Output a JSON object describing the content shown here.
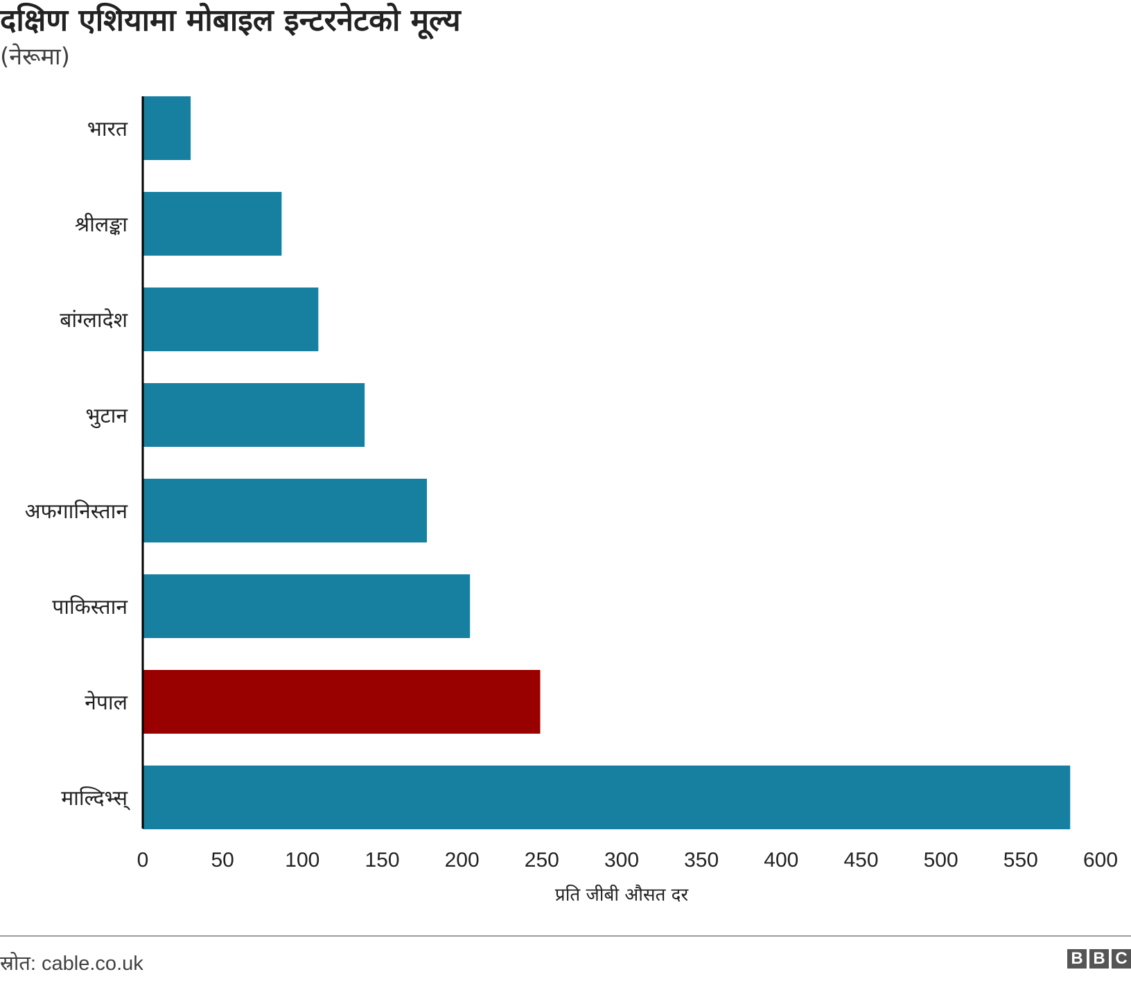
{
  "title": "दक्षिण एशियामा मोबाइल इन्टरनेटको मूल्य",
  "subtitle": "(नेरूमा)",
  "source": "स्रोत: cable.co.uk",
  "logo": [
    "B",
    "B",
    "C"
  ],
  "colors": {
    "bar": "#1780a1",
    "highlight": "#990000",
    "axis": "#000000",
    "text": "#222222"
  },
  "chart_data": {
    "type": "bar",
    "orientation": "horizontal",
    "categories": [
      "भारत",
      "श्रीलङ्का",
      "बांग्लादेश",
      "भुटान",
      "अफगानिस्तान",
      "पाकिस्तान",
      "नेपाल",
      "माल्दिभ्स्"
    ],
    "values": [
      30,
      87,
      110,
      139,
      178,
      205,
      249,
      581
    ],
    "highlight": "नेपाल",
    "xlabel": "प्रति जीबी औसत दर",
    "ylabel": "",
    "xlim": [
      0,
      600
    ],
    "xticks": [
      0,
      50,
      100,
      150,
      200,
      250,
      300,
      350,
      400,
      450,
      500,
      550,
      600
    ],
    "grid": false,
    "legend": "none"
  }
}
